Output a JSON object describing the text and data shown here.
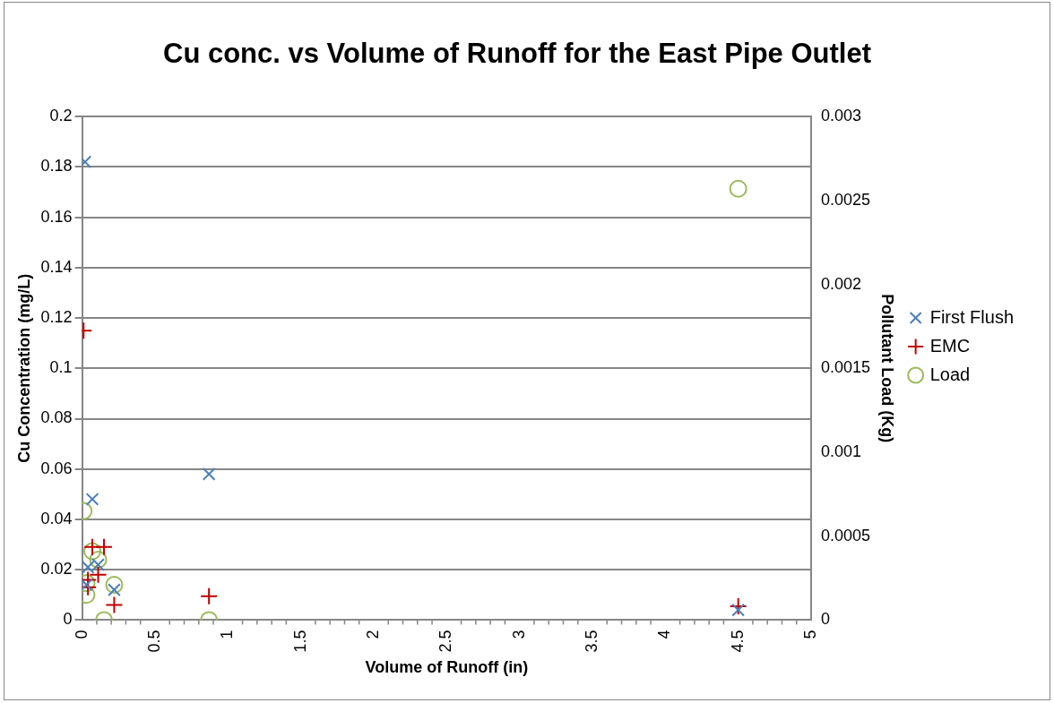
{
  "chart_data": {
    "type": "scatter",
    "title": "Cu conc. vs Volume of Runoff for the East Pipe Outlet",
    "xlabel": "Volume of Runoff (in)",
    "ylabel": "Cu Concentration (mg/L)",
    "y2label": "Pollutant Load (Kg)",
    "xlim": [
      0,
      5
    ],
    "xticks": [
      0,
      0.5,
      1,
      1.5,
      2,
      2.5,
      3,
      3.5,
      4,
      4.5,
      5
    ],
    "ylim": [
      0,
      0.2
    ],
    "yticks": [
      0,
      0.02,
      0.04,
      0.06,
      0.08,
      0.1,
      0.12,
      0.14,
      0.16,
      0.18,
      0.2
    ],
    "y2lim": [
      0,
      0.003
    ],
    "y2ticks": [
      0,
      0.0005,
      0.001,
      0.0015,
      0.002,
      0.0025,
      0.003
    ],
    "grid": "y",
    "legend": "right",
    "series": [
      {
        "name": "First Flush",
        "color": "#4a7ebb",
        "marker": "x",
        "x": [
          0.02,
          0.07,
          0.87,
          0.04,
          0.11,
          0.22,
          0.03,
          4.5
        ],
        "values": [
          0.182,
          0.048,
          0.058,
          0.021,
          0.022,
          0.012,
          0.014,
          0.004
        ]
      },
      {
        "name": "EMC",
        "color": "#c00000",
        "marker": "cross",
        "x": [
          0.01,
          0.07,
          0.15,
          0.11,
          0.04,
          0.04,
          0.22,
          0.87,
          4.5
        ],
        "values": [
          0.115,
          0.029,
          0.029,
          0.018,
          0.016,
          0.013,
          0.006,
          0.0095,
          0.0055
        ]
      },
      {
        "name": "Load",
        "color": "#9bbb59",
        "marker": "circle",
        "axis": "y2",
        "x": [
          0.01,
          0.07,
          0.11,
          0.22,
          0.03,
          0.03,
          0.15,
          0.87,
          4.5
        ],
        "values": [
          0.00065,
          0.00041,
          0.00036,
          0.00021,
          0.00022,
          0.00015,
          0,
          0,
          0.00257
        ]
      }
    ]
  }
}
